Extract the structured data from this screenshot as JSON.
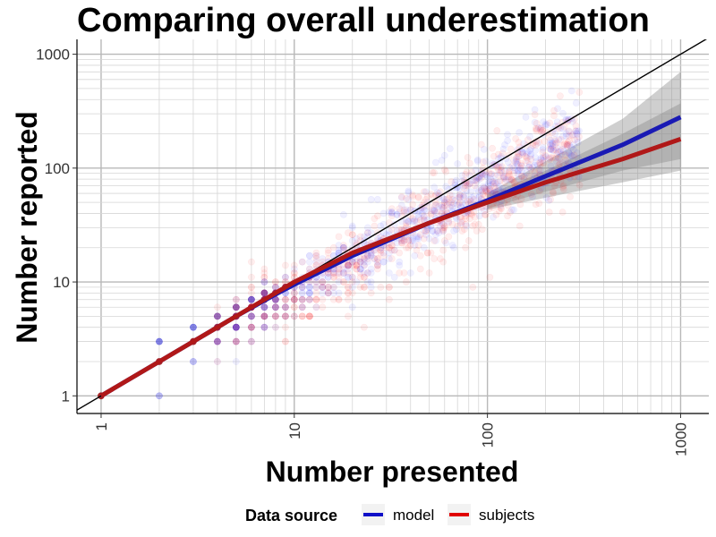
{
  "chart_data": {
    "type": "scatter",
    "title": "Comparing overall underestimation",
    "xlabel": "Number presented",
    "ylabel": "Number reported",
    "x_scale": "log10",
    "y_scale": "log10",
    "xlim": [
      0.75,
      1400
    ],
    "ylim": [
      0.7,
      1350
    ],
    "x_ticks": [
      1,
      10,
      100,
      1000
    ],
    "x_tick_labels": [
      "1",
      "10",
      "100",
      "1000"
    ],
    "y_ticks": [
      1,
      10,
      100,
      1000
    ],
    "y_tick_labels": [
      "1",
      "10",
      "100",
      "1000"
    ],
    "grid": true,
    "reference_line": {
      "slope": 1,
      "intercept": 0,
      "color": "#000000"
    },
    "legend": {
      "title": "Data source",
      "position": "bottom",
      "entries": [
        {
          "label": "model",
          "color": "#1010c8"
        },
        {
          "label": "subjects",
          "color": "#e00000"
        }
      ]
    },
    "series": [
      {
        "name": "model",
        "color": "#1a1ab4",
        "point_color": "#3030ff",
        "fit_line": {
          "x": [
            1,
            2,
            3,
            5,
            8,
            10,
            20,
            50,
            100,
            200,
            500,
            1000
          ],
          "y": [
            1,
            2,
            3,
            5,
            7.8,
            9.5,
            17,
            33,
            52,
            85,
            160,
            280
          ]
        },
        "band": {
          "x": [
            100,
            200,
            500,
            1000
          ],
          "low": [
            44,
            62,
            95,
            120
          ],
          "high": [
            60,
            115,
            270,
            700
          ]
        }
      },
      {
        "name": "subjects",
        "color": "#b01818",
        "point_color": "#ff2020",
        "fit_line": {
          "x": [
            1,
            2,
            3,
            5,
            8,
            10,
            20,
            50,
            100,
            200,
            500,
            1000
          ],
          "y": [
            1,
            2,
            3,
            5,
            8,
            10,
            18,
            33,
            50,
            75,
            120,
            180
          ]
        },
        "band": {
          "x": [
            100,
            200,
            500,
            1000
          ],
          "low": [
            43,
            55,
            75,
            95
          ],
          "high": [
            58,
            95,
            200,
            370
          ]
        }
      }
    ]
  }
}
